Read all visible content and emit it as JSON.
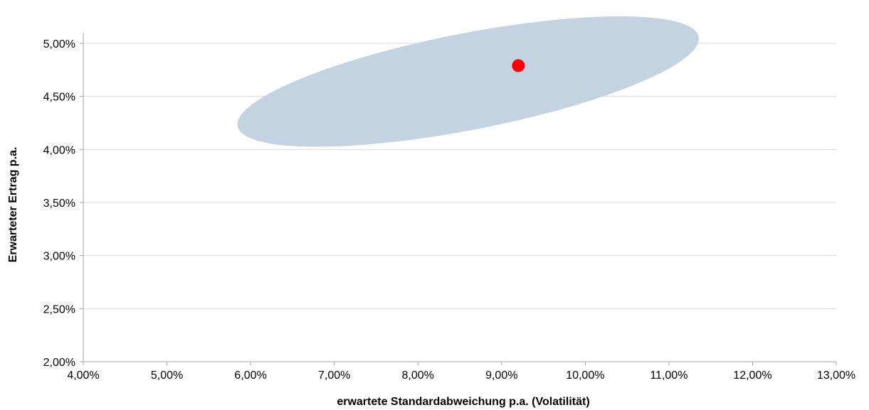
{
  "chart_data": {
    "type": "scatter",
    "title": "",
    "xlabel": "erwartete Standardabweichung p.a. (Volatilität)",
    "ylabel": "Erwarteter Ertrag p.a.",
    "xlim": [
      4.0,
      13.0
    ],
    "ylim": [
      2.0,
      5.0
    ],
    "x_ticks": [
      4,
      5,
      6,
      7,
      8,
      9,
      10,
      11,
      12,
      13
    ],
    "x_tick_labels": [
      "4,00%",
      "5,00%",
      "6,00%",
      "7,00%",
      "8,00%",
      "9,00%",
      "10,00%",
      "11,00%",
      "12,00%",
      "13,00%"
    ],
    "y_ticks": [
      2.0,
      2.5,
      3.0,
      3.5,
      4.0,
      4.5,
      5.0
    ],
    "y_tick_labels": [
      "2,00%",
      "2,50%",
      "3,00%",
      "3,50%",
      "4,00%",
      "4,50%",
      "5,00%"
    ],
    "grid": "horizontal",
    "series": [
      {
        "kind": "point",
        "color": "#ff0000",
        "points": [
          {
            "x": 9.2,
            "y": 4.79
          }
        ]
      }
    ],
    "region": {
      "kind": "ellipse",
      "color": "#c4d3e1",
      "center": {
        "x": 8.6,
        "y": 4.64
      },
      "extent_x": [
        5.8,
        11.4
      ],
      "extent_y": [
        4.13,
        5.14
      ]
    }
  }
}
